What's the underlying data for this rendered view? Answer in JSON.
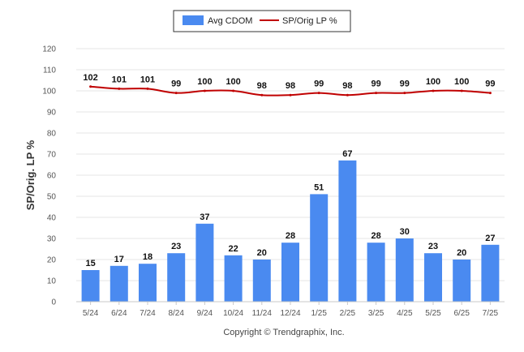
{
  "chart_data": {
    "type": "bar",
    "categories": [
      "5/24",
      "6/24",
      "7/24",
      "8/24",
      "9/24",
      "10/24",
      "11/24",
      "12/24",
      "1/25",
      "2/25",
      "3/25",
      "4/25",
      "5/25",
      "6/25",
      "7/25"
    ],
    "series": [
      {
        "name": "Avg CDOM",
        "type": "bar",
        "color": "#4a8af0",
        "values": [
          15,
          17,
          18,
          23,
          37,
          22,
          20,
          28,
          51,
          67,
          28,
          30,
          23,
          20,
          27
        ]
      },
      {
        "name": "SP/Orig LP %",
        "type": "line",
        "color": "#c00000",
        "values": [
          102,
          101,
          101,
          99,
          100,
          100,
          98,
          98,
          99,
          98,
          99,
          99,
          100,
          100,
          99
        ]
      }
    ],
    "ylabel": "SP/Orig. LP %",
    "ylim": [
      0,
      120
    ],
    "yticks": [
      0,
      10,
      20,
      30,
      40,
      50,
      60,
      70,
      80,
      90,
      100,
      110,
      120
    ],
    "grid": true,
    "legend": "top-center"
  },
  "footer": "Copyright © Trendgraphix, Inc."
}
